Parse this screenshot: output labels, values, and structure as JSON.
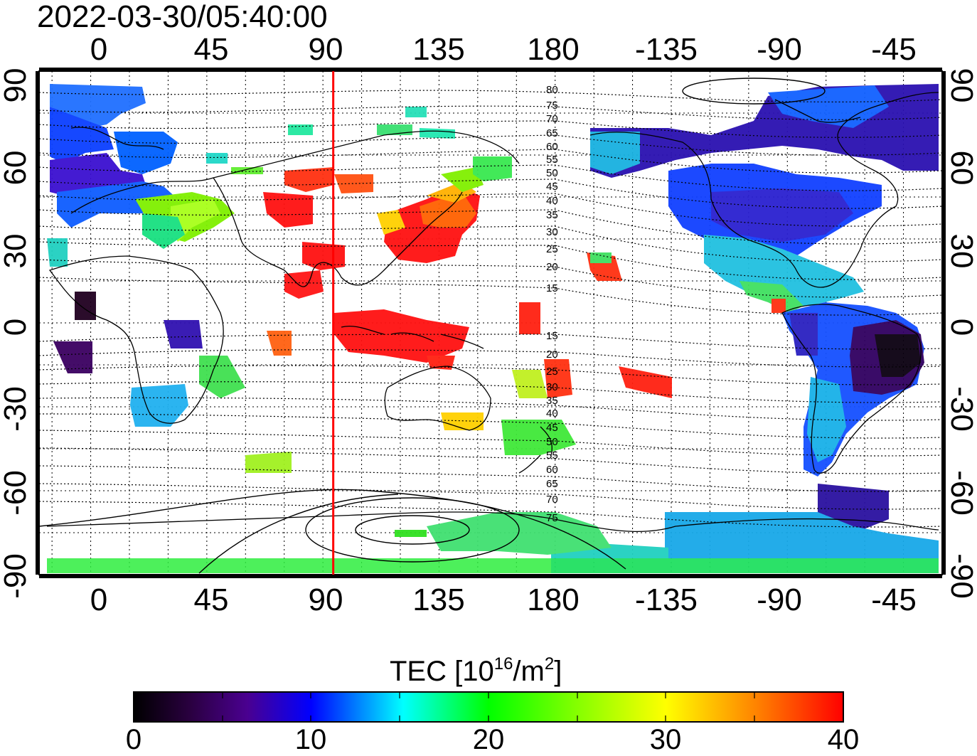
{
  "title": "2022-03-30/05:40:00",
  "longitude_ticks": [
    "0",
    "45",
    "90",
    "135",
    "180",
    "-135",
    "-90",
    "-45"
  ],
  "latitude_ticks": [
    "90",
    "60",
    "30",
    "0",
    "-30",
    "-60",
    "-90"
  ],
  "colorbar": {
    "title_prefix": "TEC  [10",
    "title_sup": "16",
    "title_suffix": "/m",
    "title_sup2": "2",
    "title_end": "]",
    "ticks": [
      "0",
      "10",
      "20",
      "30",
      "40"
    ],
    "range": [
      0,
      40
    ]
  },
  "contour_labels_upper": [
    "80",
    "75",
    "70",
    "65",
    "60",
    "55",
    "50",
    "45",
    "40",
    "35",
    "30",
    "25",
    "20",
    "15"
  ],
  "contour_labels_lower": [
    "15",
    "20",
    "25",
    "30",
    "35",
    "40",
    "45",
    "50",
    "55",
    "60",
    "65",
    "70",
    "75"
  ],
  "marker": {
    "longitude": 94,
    "color": "#ff0000"
  },
  "chart_data": {
    "type": "heatmap",
    "x_label": "",
    "y_label": "",
    "x_range": [
      -20,
      330
    ],
    "y_range": [
      -90,
      90
    ],
    "colormap": [
      "#000000",
      "#3a0060",
      "#0000ff",
      "#00ffff",
      "#00ff00",
      "#ffff00",
      "#ff0000"
    ]
  }
}
